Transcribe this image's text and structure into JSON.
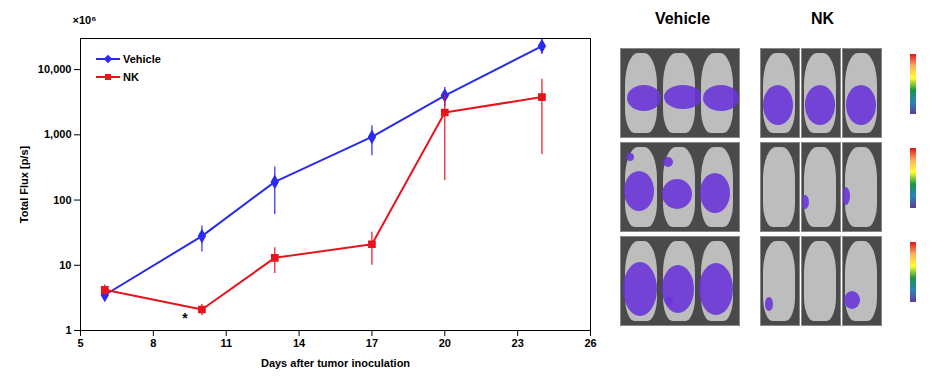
{
  "chart_data": {
    "type": "line",
    "x_label": "Days after tumor inoculation",
    "y_label": "Total Flux [p/s]",
    "x": [
      6,
      10,
      13,
      17,
      20,
      24
    ],
    "series": [
      {
        "name": "Vehicle",
        "color": "#2a2af2",
        "marker": "diamond",
        "line_style": "solid",
        "values": [
          3.5,
          28,
          190,
          930,
          4000,
          23000
        ],
        "errors": [
          0.5,
          12,
          130,
          450,
          1300,
          6000
        ]
      },
      {
        "name": "NK",
        "color": "#e8141c",
        "marker": "square",
        "line_style": "solid",
        "values": [
          4.2,
          2.1,
          13,
          21,
          2200,
          3800
        ],
        "errors": [
          0.8,
          0.4,
          5.5,
          11,
          2000,
          3300
        ]
      }
    ],
    "xlim": [
      5,
      26
    ],
    "xticks": [
      5,
      8,
      11,
      14,
      17,
      20,
      23,
      26
    ],
    "ylim": [
      1,
      30000
    ],
    "yticks": [
      1,
      10,
      100,
      {
        "value": 1000,
        "label": "1,000"
      },
      {
        "value": 10000,
        "label": "10,000"
      }
    ],
    "log": "y",
    "grid": false,
    "legend": "top-left",
    "annotations": [
      {
        "text": "*",
        "x": 9.3,
        "y": 1.5
      },
      {
        "text": "×10⁶"
      }
    ]
  },
  "image_panel": {
    "columns": [
      "Vehicle",
      "NK"
    ]
  }
}
